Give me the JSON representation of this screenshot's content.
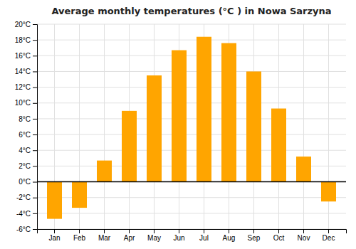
{
  "chart_data": {
    "type": "bar",
    "title": "Average monthly temperatures (°C ) in Nowa Sarzyna",
    "categories": [
      "Jan",
      "Feb",
      "Mar",
      "Apr",
      "May",
      "Jun",
      "Jul",
      "Aug",
      "Sep",
      "Oct",
      "Nov",
      "Dec"
    ],
    "values": [
      -4.7,
      -3.3,
      2.7,
      9.0,
      13.5,
      16.7,
      18.4,
      17.6,
      14.0,
      9.3,
      3.2,
      -2.5
    ],
    "color": "#FFA500",
    "ylim": [
      -6,
      20
    ],
    "yticks": [
      {
        "value": -6,
        "label": "-6°C"
      },
      {
        "value": -4,
        "label": "-4°C"
      },
      {
        "value": -2,
        "label": "-2°C"
      },
      {
        "value": 0,
        "label": "0°C"
      },
      {
        "value": 2,
        "label": "2°C"
      },
      {
        "value": 4,
        "label": "4°C"
      },
      {
        "value": 6,
        "label": "6°C"
      },
      {
        "value": 8,
        "label": "8°C"
      },
      {
        "value": 10,
        "label": "10°C"
      },
      {
        "value": 12,
        "label": "12°C"
      },
      {
        "value": 14,
        "label": "14°C"
      },
      {
        "value": 16,
        "label": "16°C"
      },
      {
        "value": 18,
        "label": "18°C"
      },
      {
        "value": 20,
        "label": "20°C"
      }
    ],
    "grid": true
  }
}
